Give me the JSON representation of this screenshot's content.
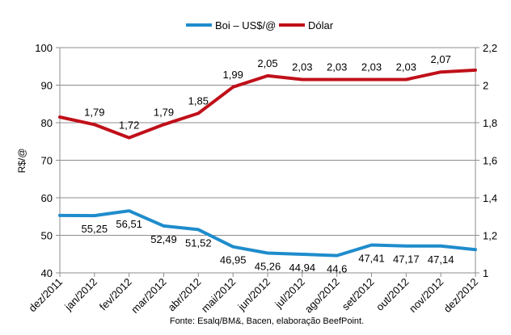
{
  "chart_data": {
    "type": "line",
    "legend": {
      "position": "top-center"
    },
    "x": [
      "dez/2011",
      "jan/2012",
      "fev/2012",
      "mar/2012",
      "abr/2012",
      "mai/2012",
      "jun/2012",
      "jul/2012",
      "ago/2012",
      "set/2012",
      "out/2012",
      "nov/2012",
      "dez/2012"
    ],
    "ylabel_left": "R$/@",
    "ylim_left": [
      40,
      100
    ],
    "yticks_left": [
      40,
      50,
      60,
      70,
      80,
      90,
      100
    ],
    "ylim_right": [
      1,
      2.2
    ],
    "yticks_right": [
      "1",
      "1,2",
      "1,4",
      "1,6",
      "1,8",
      "2",
      "2,2"
    ],
    "grid": true,
    "source_note": "Fonte: Esalq/BM&, Bacen, elaboração BeefPoint.",
    "series": [
      {
        "name": "Boi – US$/@",
        "axis": "left",
        "color": "#1f8ccc",
        "values": [
          55.3,
          55.25,
          56.51,
          52.49,
          51.52,
          46.95,
          45.26,
          44.94,
          44.6,
          47.41,
          47.17,
          47.14,
          46.2
        ],
        "labels": [
          "",
          "55,25",
          "56,51",
          "52,49",
          "51,52",
          "46,95",
          "45,26",
          "44,94",
          "44,6",
          "47,41",
          "47,17",
          "47,14",
          ""
        ]
      },
      {
        "name": "Dólar",
        "axis": "right",
        "color": "#c0101a",
        "values": [
          1.83,
          1.79,
          1.72,
          1.79,
          1.85,
          1.99,
          2.05,
          2.03,
          2.03,
          2.03,
          2.03,
          2.07,
          2.08
        ],
        "labels": [
          "",
          "1,79",
          "1,72",
          "1,79",
          "1,85",
          "1,99",
          "2,05",
          "2,03",
          "2,03",
          "2,03",
          "2,03",
          "2,07",
          ""
        ]
      }
    ]
  }
}
